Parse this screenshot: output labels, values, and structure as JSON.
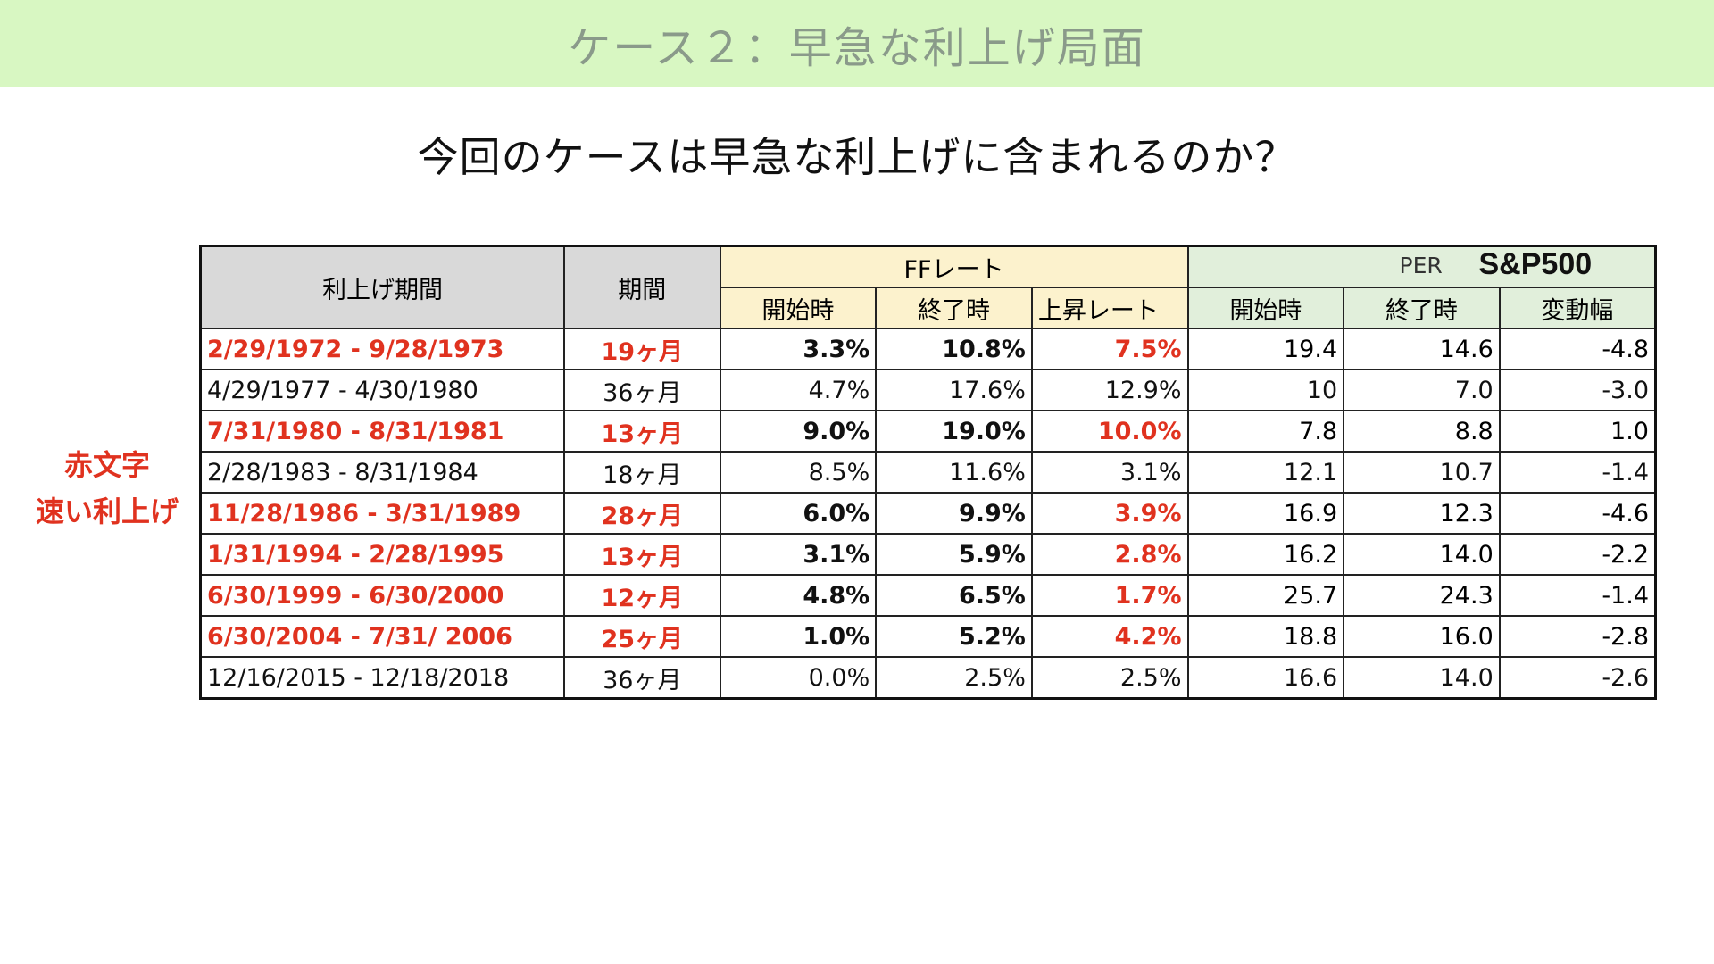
{
  "header": {
    "title": "ケース２：早急な利上げ局面"
  },
  "subtitle": "今回のケースは早急な利上げに含まれるのか？",
  "side_note": {
    "line1": "赤文字",
    "line2": "速い利上げ"
  },
  "table": {
    "col_period_range": "利上げ期間",
    "col_duration": "期間",
    "group_ff": "FFレート",
    "group_per": "PER",
    "group_per_index": "S&P500",
    "sub_headers": [
      "開始時",
      "終了時",
      "上昇レート",
      "開始時",
      "終了時",
      "変動幅"
    ],
    "rows": [
      {
        "fast": true,
        "cells": [
          "2/29/1972 - 9/28/1973",
          "19ヶ月",
          "3.3%",
          "10.8%",
          "7.5%",
          "19.4",
          "14.6",
          "-4.8"
        ]
      },
      {
        "fast": false,
        "cells": [
          "4/29/1977 - 4/30/1980",
          "36ヶ月",
          "4.7%",
          "17.6%",
          "12.9%",
          "10",
          "7.0",
          "-3.0"
        ]
      },
      {
        "fast": true,
        "cells": [
          "7/31/1980 - 8/31/1981",
          "13ヶ月",
          "9.0%",
          "19.0%",
          "10.0%",
          "7.8",
          "8.8",
          "1.0"
        ]
      },
      {
        "fast": false,
        "cells": [
          "2/28/1983 - 8/31/1984",
          "18ヶ月",
          "8.5%",
          "11.6%",
          "3.1%",
          "12.1",
          "10.7",
          "-1.4"
        ]
      },
      {
        "fast": true,
        "cells": [
          "11/28/1986 - 3/31/1989",
          "28ヶ月",
          "6.0%",
          "9.9%",
          "3.9%",
          "16.9",
          "12.3",
          "-4.6"
        ]
      },
      {
        "fast": true,
        "cells": [
          "1/31/1994 - 2/28/1995",
          "13ヶ月",
          "3.1%",
          "5.9%",
          "2.8%",
          "16.2",
          "14.0",
          "-2.2"
        ]
      },
      {
        "fast": true,
        "cells": [
          "6/30/1999 - 6/30/2000",
          "12ヶ月",
          "4.8%",
          "6.5%",
          "1.7%",
          "25.7",
          "24.3",
          "-1.4"
        ]
      },
      {
        "fast": true,
        "cells": [
          "6/30/2004 - 7/31/ 2006",
          "25ヶ月",
          "1.0%",
          "5.2%",
          "4.2%",
          "18.8",
          "16.0",
          "-2.8"
        ]
      },
      {
        "fast": false,
        "cells": [
          "12/16/2015 - 12/18/2018",
          "36ヶ月",
          "0.0%",
          "2.5%",
          "2.5%",
          "16.6",
          "14.0",
          "-2.6"
        ]
      }
    ]
  },
  "colors": {
    "header_band": "#d8f7c2",
    "red_text": "#e0321f",
    "ff_header": "#fcf2cd",
    "per_header": "#e1efdb",
    "gray_header": "#d9d9d9"
  }
}
